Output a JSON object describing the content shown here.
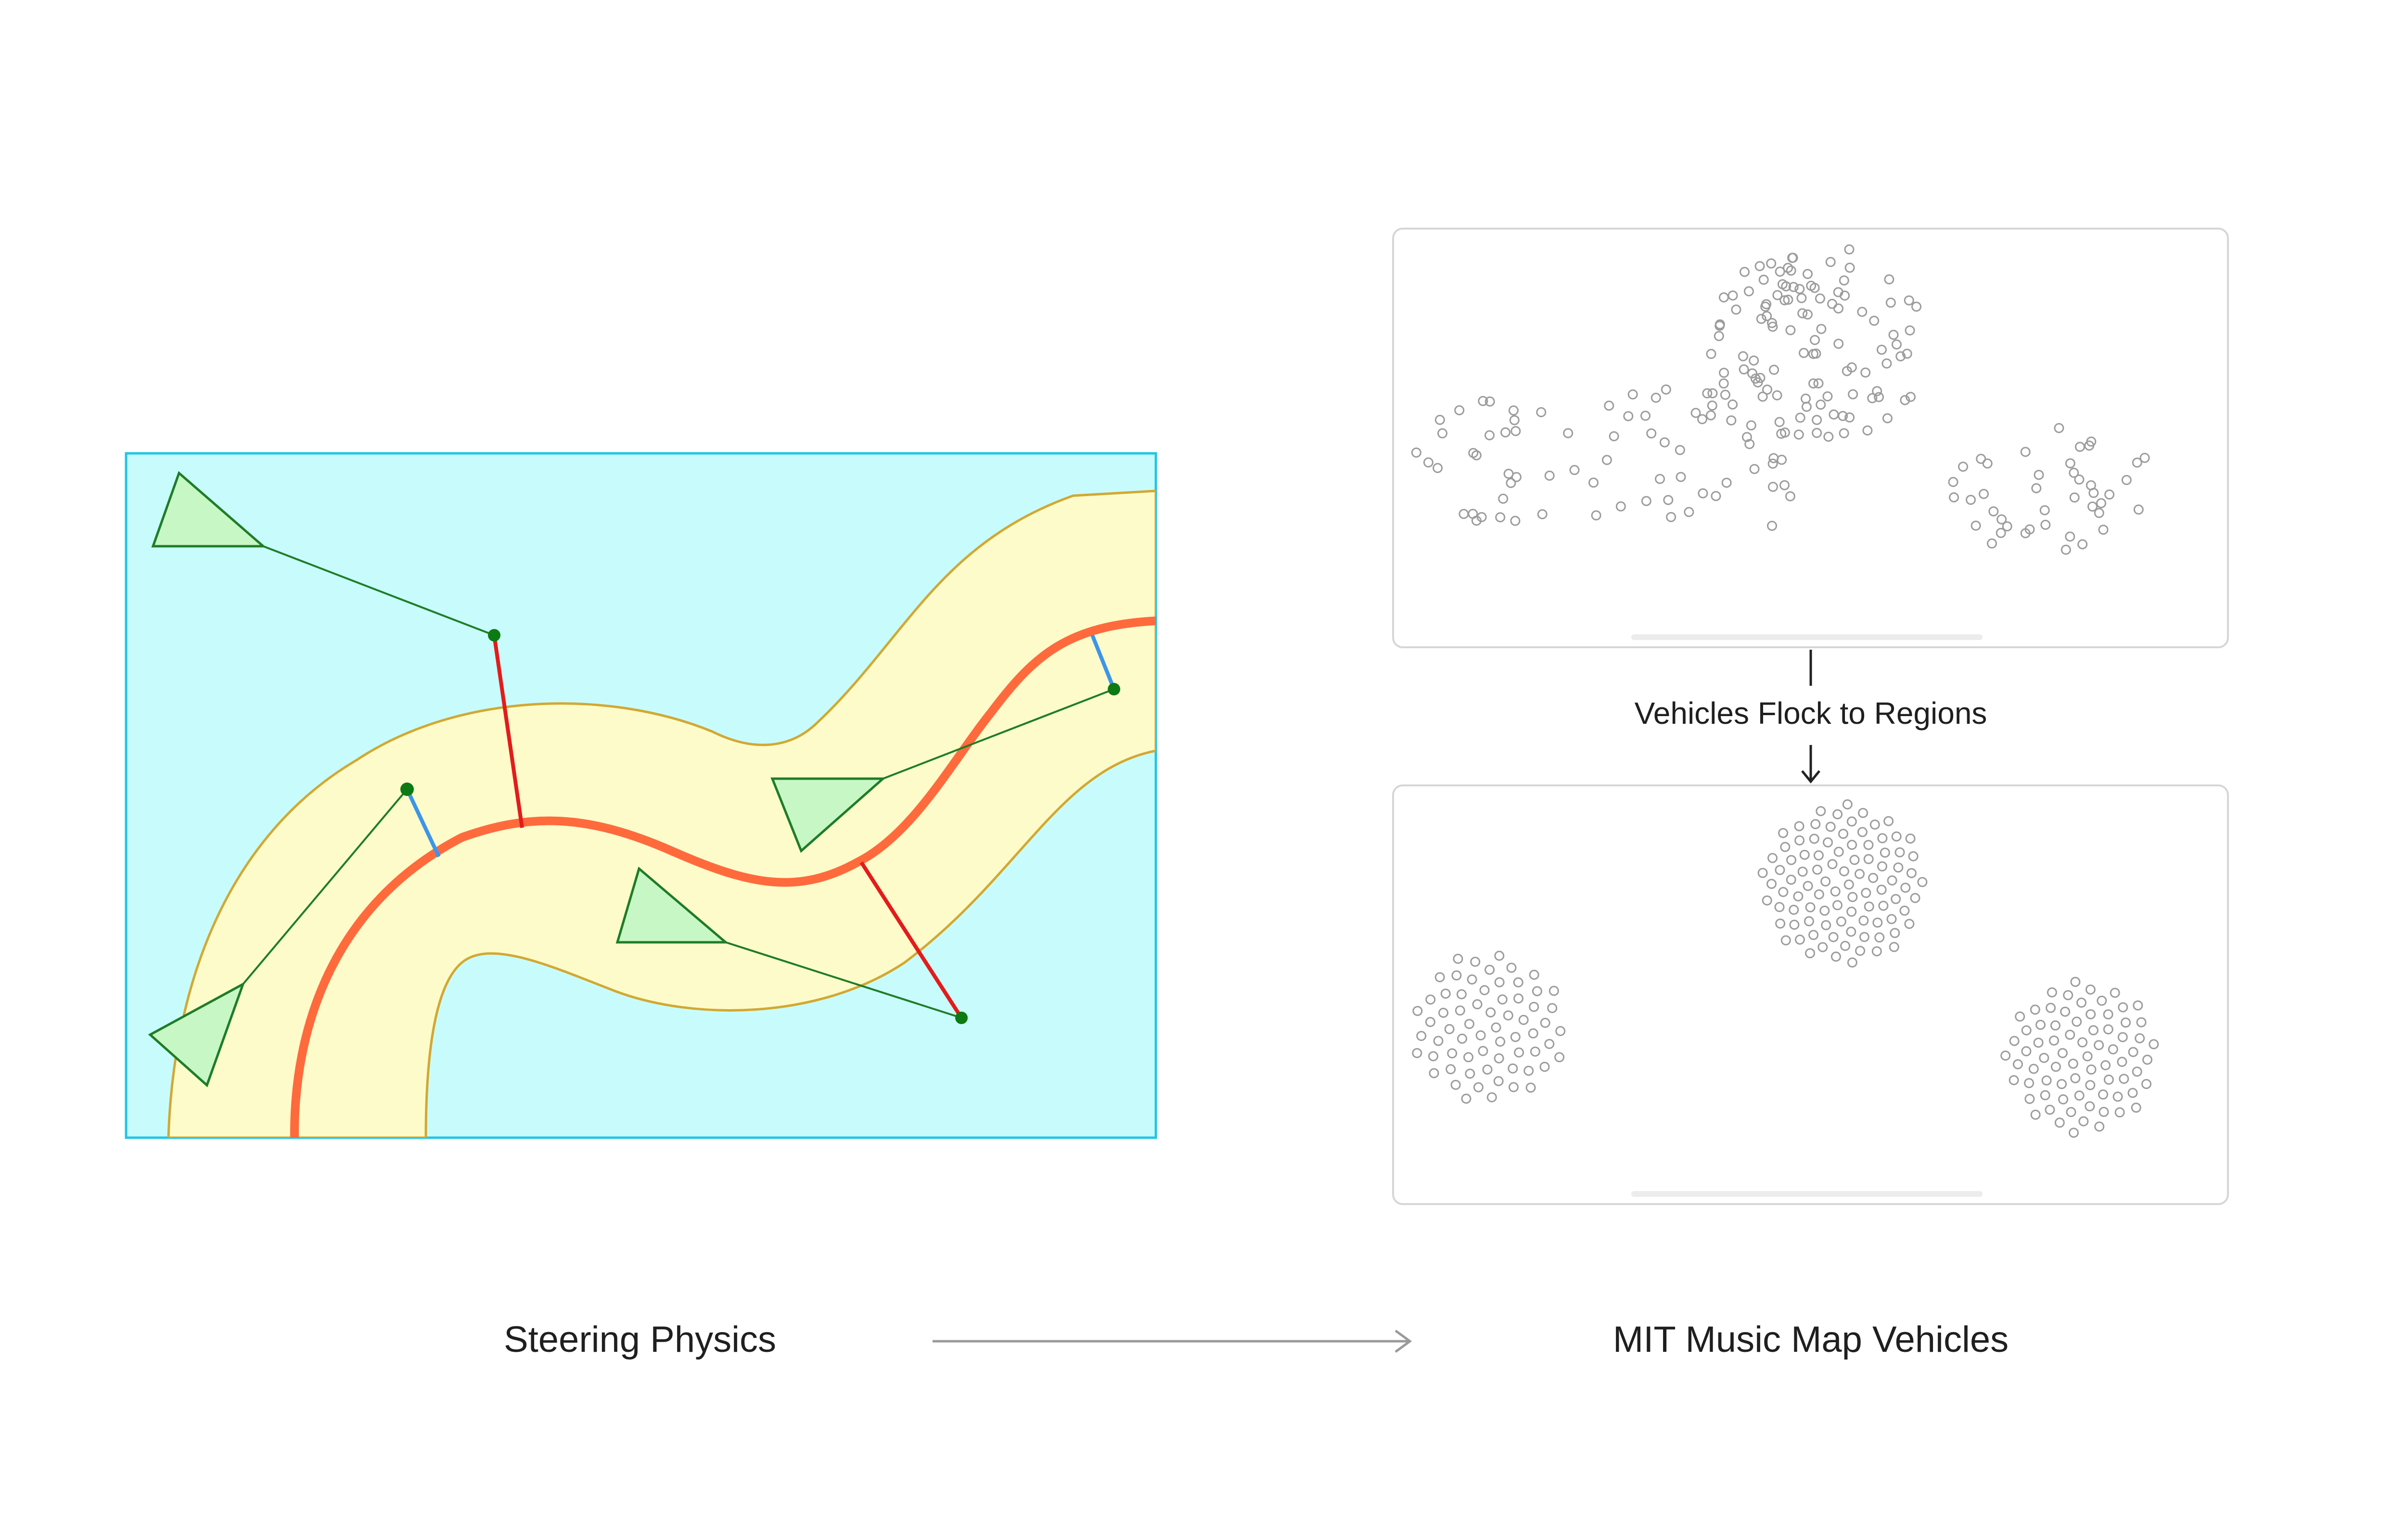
{
  "labels": {
    "left": "Steering Physics",
    "right": "MIT Music Map Vehicles",
    "middle": "Vehicles Flock to Regions"
  },
  "colors": {
    "sky": "#c8fcfc",
    "sky_border": "#22c5e5",
    "road": "#fdfbc9",
    "road_border": "#d2a833",
    "path": "#ff6a3d",
    "correction_red": "#e21c1c",
    "correction_blue": "#3d95e8",
    "vehicle_fill": "#c8f7c6",
    "vehicle_stroke": "#1e7d27",
    "target_dot": "#0d7a14",
    "panel_border": "#d6d6d6",
    "particle_stroke": "#9c9c9c",
    "arrow": "#9a9a9a"
  },
  "icons": {
    "flow_arrow": "right-arrow-icon",
    "down_arrow": "down-arrow-icon"
  }
}
